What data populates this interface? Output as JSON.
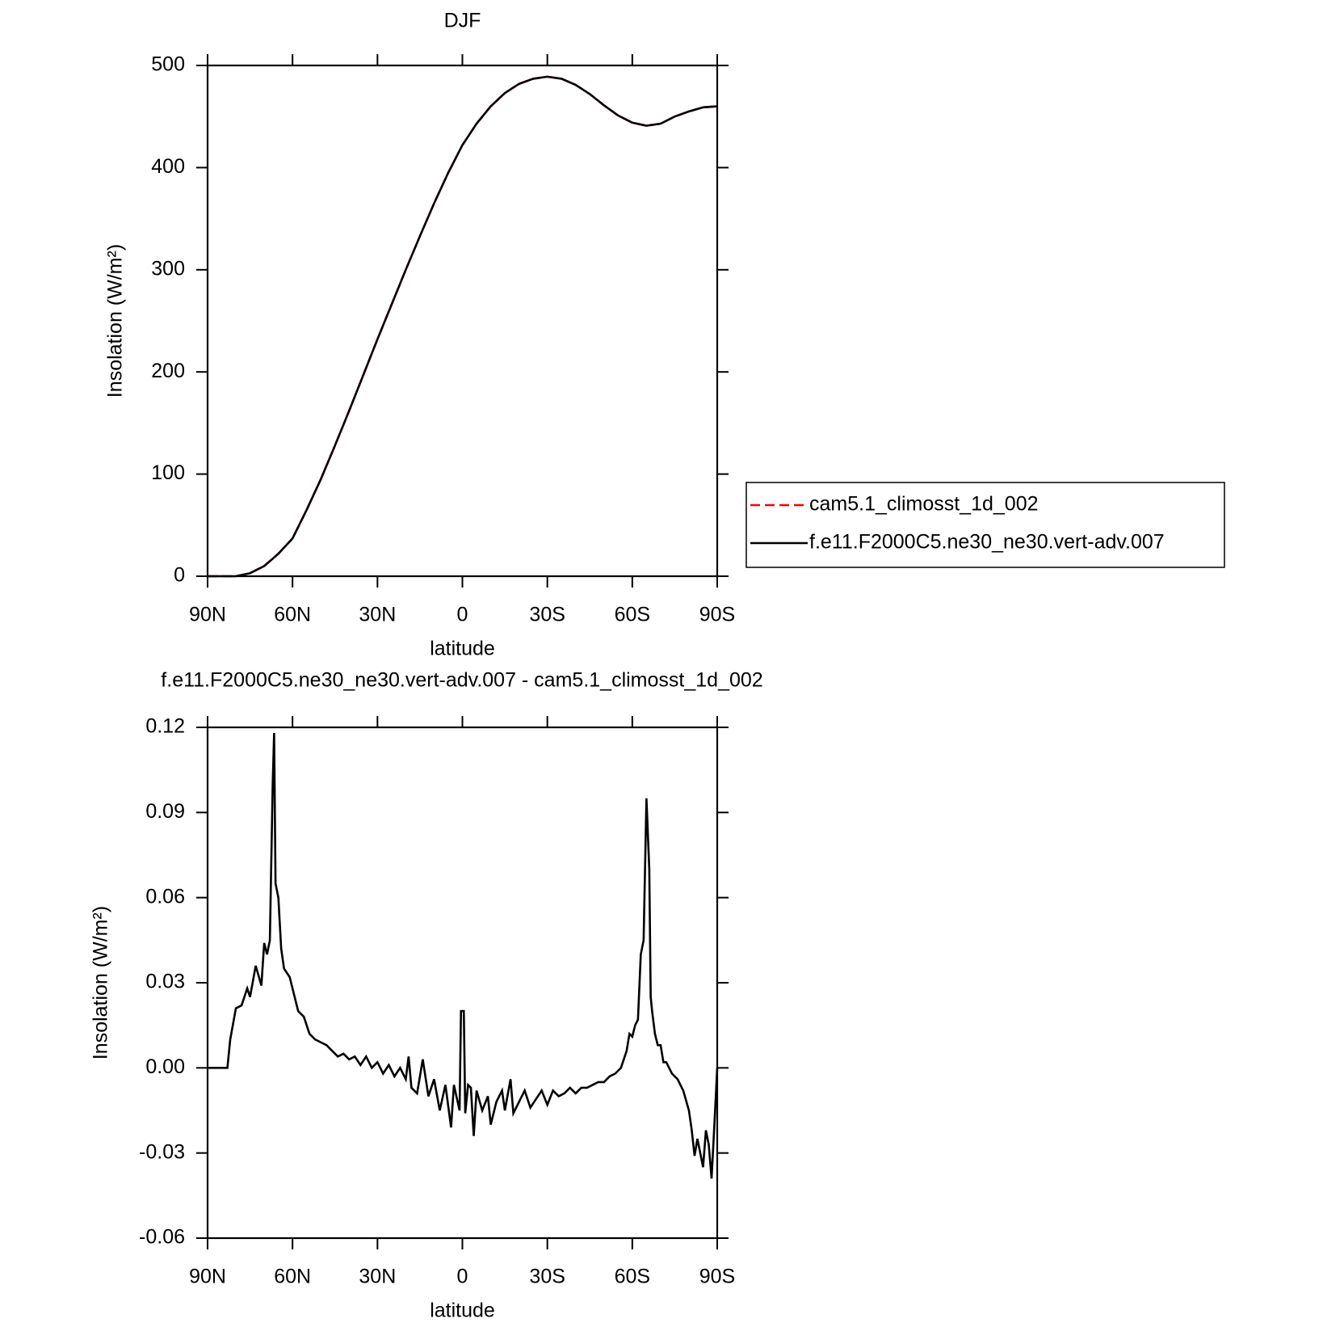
{
  "chart_data": [
    {
      "type": "line",
      "title": "DJF",
      "xlabel": "latitude",
      "ylabel": "Insolation (W/m²)",
      "x": [
        90,
        85,
        80,
        75,
        70,
        65,
        60,
        55,
        50,
        45,
        40,
        35,
        30,
        25,
        20,
        15,
        10,
        5,
        0,
        -5,
        -10,
        -15,
        -20,
        -25,
        -30,
        -35,
        -40,
        -45,
        -50,
        -55,
        -60,
        -65,
        -70,
        -75,
        -80,
        -85,
        -90
      ],
      "series": [
        {
          "name": "cam5.1_climosst_1d_002",
          "color": "#ff0000",
          "line_style": "dashed",
          "values": [
            0,
            0,
            0,
            3,
            10,
            22,
            37,
            65,
            95,
            128,
            162,
            197,
            232,
            266,
            300,
            333,
            365,
            395,
            422,
            443,
            460,
            473,
            482,
            487,
            489,
            487,
            481,
            472,
            461,
            451,
            444,
            441,
            443,
            450,
            455,
            459,
            460
          ]
        },
        {
          "name": "f.e11.F2000C5.ne30_ne30.vert-adv.007",
          "color": "#000000",
          "line_style": "solid",
          "values": [
            0,
            0,
            0,
            3,
            10,
            22,
            37,
            65,
            95,
            128,
            162,
            197,
            232,
            266,
            300,
            333,
            365,
            395,
            422,
            443,
            460,
            473,
            482,
            487,
            489,
            487,
            481,
            472,
            461,
            451,
            444,
            441,
            443,
            450,
            455,
            459,
            460
          ]
        }
      ],
      "xlim": [
        90,
        -90
      ],
      "xticks": [
        {
          "value": 90,
          "label": "90N"
        },
        {
          "value": 60,
          "label": "60N"
        },
        {
          "value": 30,
          "label": "30N"
        },
        0,
        {
          "value": -30,
          "label": "30S"
        },
        {
          "value": -60,
          "label": "60S"
        },
        {
          "value": -90,
          "label": "90S"
        }
      ],
      "ylim": [
        0,
        500
      ],
      "yticks": [
        0,
        100,
        200,
        300,
        400,
        500
      ],
      "legend": "right"
    },
    {
      "type": "line",
      "title": "f.e11.F2000C5.ne30_ne30.vert-adv.007 - cam5.1_climosst_1d_002",
      "xlabel": "latitude",
      "ylabel": "Insolation (W/m²)",
      "x": [
        90,
        88,
        86,
        84,
        83,
        82,
        80,
        78,
        76,
        75,
        73,
        71,
        70,
        69,
        68,
        67,
        66.5,
        66,
        65,
        64,
        63,
        61,
        60,
        58,
        56,
        54,
        52,
        50,
        48,
        46,
        44,
        42,
        40,
        38,
        36,
        34,
        32,
        30,
        28,
        26,
        24,
        22,
        20,
        19,
        18,
        16,
        14,
        12,
        10,
        8,
        6,
        4,
        3,
        1,
        0.5,
        -0.5,
        -1,
        -2,
        -3,
        -4,
        -5,
        -7,
        -9,
        -10,
        -12,
        -14,
        -15,
        -17,
        -18,
        -20,
        -22,
        -24,
        -26,
        -28,
        -30,
        -32,
        -34,
        -36,
        -38,
        -40,
        -42,
        -44,
        -46,
        -48,
        -50,
        -52,
        -54,
        -56,
        -57,
        -58,
        -59,
        -60,
        -61,
        -62,
        -63,
        -64,
        -65,
        -66,
        -66.5,
        -67,
        -68,
        -69,
        -70,
        -71,
        -72,
        -73,
        -74,
        -75,
        -76,
        -78,
        -80,
        -81,
        -82,
        -83,
        -84,
        -85,
        -86,
        -87,
        -88,
        -89,
        -90
      ],
      "series": [
        {
          "name": "f.e11.F2000C5.ne30_ne30.vert-adv.007 - cam5.1_climosst_1d_002",
          "color": "#000000",
          "line_style": "solid",
          "values": [
            0,
            0,
            0,
            0,
            0,
            0.01,
            0.021,
            0.022,
            0.028,
            0.025,
            0.036,
            0.029,
            0.044,
            0.04,
            0.045,
            0.1,
            0.118,
            0.065,
            0.06,
            0.042,
            0.035,
            0.032,
            0.028,
            0.02,
            0.018,
            0.012,
            0.01,
            0.009,
            0.008,
            0.006,
            0.004,
            0.005,
            0.003,
            0.004,
            0.001,
            0.004,
            0,
            0.002,
            -0.002,
            0.001,
            -0.003,
            0,
            -0.004,
            0.004,
            -0.007,
            -0.009,
            0.003,
            -0.01,
            -0.004,
            -0.015,
            -0.006,
            -0.021,
            -0.006,
            -0.015,
            0.02,
            0.02,
            -0.016,
            -0.006,
            -0.007,
            -0.024,
            -0.008,
            -0.015,
            -0.01,
            -0.02,
            -0.012,
            -0.008,
            -0.015,
            -0.004,
            -0.016,
            -0.012,
            -0.008,
            -0.014,
            -0.011,
            -0.008,
            -0.013,
            -0.008,
            -0.01,
            -0.009,
            -0.007,
            -0.009,
            -0.007,
            -0.007,
            -0.006,
            -0.005,
            -0.005,
            -0.003,
            -0.002,
            0,
            0.003,
            0.006,
            0.012,
            0.011,
            0.015,
            0.017,
            0.04,
            0.045,
            0.095,
            0.07,
            0.025,
            0.02,
            0.012,
            0.008,
            0.008,
            0.002,
            0.002,
            0,
            -0.002,
            -0.003,
            -0.004,
            -0.008,
            -0.015,
            -0.022,
            -0.031,
            -0.025,
            -0.03,
            -0.035,
            -0.022,
            -0.027,
            -0.039,
            -0.02,
            0
          ]
        }
      ],
      "xlim": [
        90,
        -90
      ],
      "xticks": [
        {
          "value": 90,
          "label": "90N"
        },
        {
          "value": 60,
          "label": "60N"
        },
        {
          "value": 30,
          "label": "30N"
        },
        0,
        {
          "value": -30,
          "label": "30S"
        },
        {
          "value": -60,
          "label": "60S"
        },
        {
          "value": -90,
          "label": "90S"
        }
      ],
      "ylim": [
        -0.06,
        0.12
      ],
      "yticks": [
        {
          "value": -0.06,
          "label": "-0.06"
        },
        {
          "value": -0.03,
          "label": "-0.03"
        },
        {
          "value": 0,
          "label": "0.00"
        },
        {
          "value": 0.03,
          "label": "0.03"
        },
        {
          "value": 0.06,
          "label": "0.06"
        },
        {
          "value": 0.09,
          "label": "0.09"
        },
        {
          "value": 0.12,
          "label": "0.12"
        }
      ]
    }
  ]
}
